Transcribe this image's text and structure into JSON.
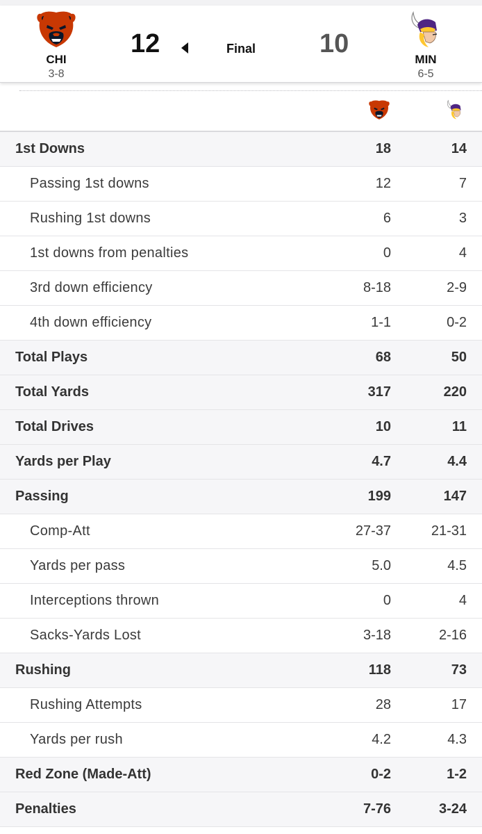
{
  "scoreboard": {
    "away": {
      "abbr": "CHI",
      "record": "3-8",
      "score": "12",
      "logo": "bears-logo-icon",
      "color": "#0B162A",
      "accent": "#C83803"
    },
    "home": {
      "abbr": "MIN",
      "record": "6-5",
      "score": "10",
      "logo": "vikings-logo-icon",
      "color": "#4F2683",
      "accent": "#FFC62F"
    },
    "status": "Final"
  },
  "stats": [
    {
      "label": "1st Downs",
      "away": "18",
      "home": "14",
      "type": "main"
    },
    {
      "label": "Passing 1st downs",
      "away": "12",
      "home": "7",
      "type": "sub"
    },
    {
      "label": "Rushing 1st downs",
      "away": "6",
      "home": "3",
      "type": "sub"
    },
    {
      "label": "1st downs from penalties",
      "away": "0",
      "home": "4",
      "type": "sub"
    },
    {
      "label": "3rd down efficiency",
      "away": "8-18",
      "home": "2-9",
      "type": "sub"
    },
    {
      "label": "4th down efficiency",
      "away": "1-1",
      "home": "0-2",
      "type": "sub"
    },
    {
      "label": "Total Plays",
      "away": "68",
      "home": "50",
      "type": "main"
    },
    {
      "label": "Total Yards",
      "away": "317",
      "home": "220",
      "type": "main"
    },
    {
      "label": "Total Drives",
      "away": "10",
      "home": "11",
      "type": "main"
    },
    {
      "label": "Yards per Play",
      "away": "4.7",
      "home": "4.4",
      "type": "main"
    },
    {
      "label": "Passing",
      "away": "199",
      "home": "147",
      "type": "main"
    },
    {
      "label": "Comp-Att",
      "away": "27-37",
      "home": "21-31",
      "type": "sub"
    },
    {
      "label": "Yards per pass",
      "away": "5.0",
      "home": "4.5",
      "type": "sub"
    },
    {
      "label": "Interceptions thrown",
      "away": "0",
      "home": "4",
      "type": "sub"
    },
    {
      "label": "Sacks-Yards Lost",
      "away": "3-18",
      "home": "2-16",
      "type": "sub"
    },
    {
      "label": "Rushing",
      "away": "118",
      "home": "73",
      "type": "main"
    },
    {
      "label": "Rushing Attempts",
      "away": "28",
      "home": "17",
      "type": "sub"
    },
    {
      "label": "Yards per rush",
      "away": "4.2",
      "home": "4.3",
      "type": "sub"
    },
    {
      "label": "Red Zone (Made-Att)",
      "away": "0-2",
      "home": "1-2",
      "type": "main"
    },
    {
      "label": "Penalties",
      "away": "7-76",
      "home": "3-24",
      "type": "main"
    }
  ]
}
